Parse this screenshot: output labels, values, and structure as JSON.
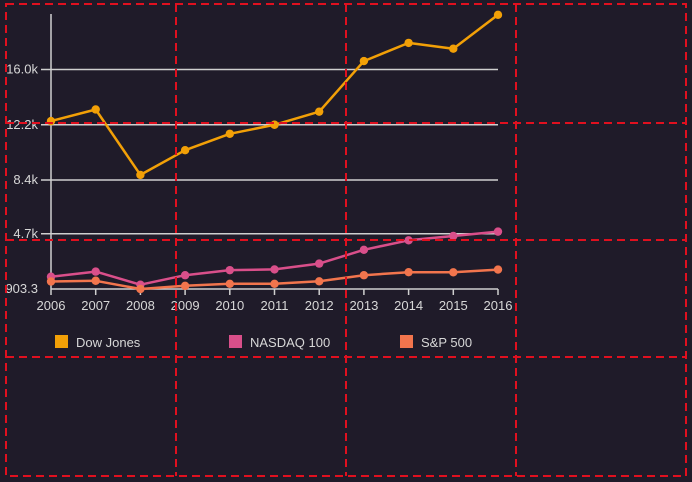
{
  "chart_data": {
    "type": "line",
    "x": [
      "2006",
      "2007",
      "2008",
      "2009",
      "2010",
      "2011",
      "2012",
      "2013",
      "2014",
      "2015",
      "2016"
    ],
    "ylim": [
      903.3,
      20000
    ],
    "yticks": [
      "903.3",
      "4.7k",
      "8.4k",
      "12.2k",
      "16.0k"
    ],
    "ytick_values": [
      903.3,
      4700,
      8400,
      12200,
      16000
    ],
    "grid": true,
    "legend_position": "bottom",
    "series": [
      {
        "name": "Dow Jones",
        "color": "#f2a007",
        "values": [
          12450,
          13250,
          8750,
          10450,
          11580,
          12200,
          13100,
          16580,
          17830,
          17430,
          19760
        ]
      },
      {
        "name": "NASDAQ 100",
        "color": "#d94f8a",
        "values": [
          1750,
          2100,
          1200,
          1850,
          2200,
          2250,
          2650,
          3600,
          4250,
          4550,
          4850
        ]
      },
      {
        "name": "S&P 500",
        "color": "#f2754d",
        "values": [
          1420,
          1470,
          903,
          1120,
          1260,
          1260,
          1430,
          1850,
          2060,
          2050,
          2240
        ]
      }
    ]
  },
  "overlay": {
    "color": "#e0101f"
  }
}
